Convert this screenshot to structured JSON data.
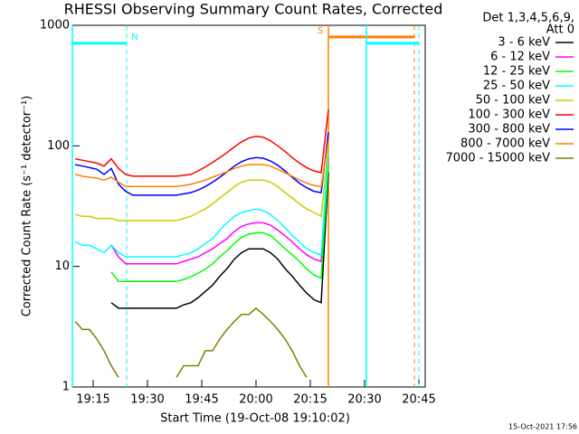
{
  "chart_data": {
    "type": "line",
    "title": "RHESSI Observing Summary Count Rates, Corrected",
    "xlabel": "Start Time (19-Oct-08 19:10:02)",
    "ylabel": "Corrected Count Rate (s⁻¹ detector⁻¹)",
    "legend_title": [
      "Det 1,3,4,5,6,9,",
      "Att 0"
    ],
    "legend": "right",
    "timestamp": "15-Oct-2021 17:56",
    "yscale": "log",
    "xlim": [
      -0.75,
      96.75
    ],
    "ylim": [
      1,
      1000
    ],
    "xticks": [
      {
        "value": 5,
        "label": "19:15"
      },
      {
        "value": 20,
        "label": "19:30"
      },
      {
        "value": 35,
        "label": "19:45"
      },
      {
        "value": 50,
        "label": "20:00"
      },
      {
        "value": 65,
        "label": "20:15"
      },
      {
        "value": 80,
        "label": "20:30"
      },
      {
        "value": 95,
        "label": "20:45"
      }
    ],
    "yticks": [
      1,
      10,
      100,
      1000
    ],
    "flags": [
      {
        "label": "N",
        "color": "#00ffff",
        "start": -0.75,
        "end": 14.25,
        "level": 710
      },
      {
        "label": "S",
        "color": "#ff8000",
        "start": 70,
        "end": 93.75,
        "level": 800
      },
      {
        "color": "#00ffff",
        "start": 80.5,
        "end": 95,
        "level": 710
      }
    ],
    "x": [
      0,
      2,
      4,
      6,
      8,
      10,
      12,
      14,
      16,
      18,
      20,
      22,
      24,
      26,
      28,
      30,
      32,
      34,
      36,
      38,
      40,
      42,
      44,
      46,
      48,
      50,
      52,
      54,
      56,
      58,
      60,
      62,
      64,
      66,
      68,
      70
    ],
    "series": [
      {
        "name": "3 - 6 keV",
        "color": "#000000",
        "values": [
          null,
          null,
          null,
          null,
          null,
          5,
          4.5,
          4.5,
          4.5,
          4.5,
          4.5,
          4.5,
          4.5,
          4.5,
          4.5,
          4.8,
          5,
          5.5,
          6.2,
          7,
          8.3,
          9.6,
          11.5,
          13,
          14,
          14,
          14,
          13,
          11.5,
          9.6,
          8.3,
          7,
          6,
          5.3,
          5,
          60
        ]
      },
      {
        "name": "6 - 12 keV",
        "color": "#ff00ff",
        "values": [
          null,
          null,
          null,
          null,
          null,
          15,
          12,
          10.5,
          10.5,
          10.5,
          10.5,
          10.5,
          10.5,
          10.5,
          10.5,
          11,
          11.5,
          12,
          13,
          14,
          15.5,
          17,
          19.5,
          21.5,
          22.5,
          23,
          23,
          22,
          20,
          18,
          16,
          14,
          12.5,
          11.5,
          11,
          80
        ]
      },
      {
        "name": "12 - 25 keV",
        "color": "#00ff00",
        "values": [
          null,
          null,
          null,
          null,
          null,
          9,
          7.5,
          7.5,
          7.5,
          7.5,
          7.5,
          7.5,
          7.5,
          7.5,
          7.5,
          7.8,
          8.2,
          8.8,
          9.5,
          10.5,
          12,
          13.5,
          15.5,
          17.5,
          18.5,
          19,
          19,
          18,
          16,
          14,
          12.5,
          11,
          9.5,
          8.5,
          8,
          70
        ]
      },
      {
        "name": "25 - 50 keV",
        "color": "#00ffff",
        "values": [
          16,
          15,
          15,
          14,
          13,
          15,
          13,
          12,
          12,
          12,
          12,
          12,
          12,
          12,
          12,
          12.5,
          13,
          14,
          15.5,
          17,
          20,
          23,
          26,
          28,
          29,
          30,
          29,
          27,
          24,
          21,
          18,
          16,
          14,
          13,
          12.5,
          90
        ]
      },
      {
        "name": "50 - 100 keV",
        "color": "#cccc00",
        "values": [
          27,
          26,
          26,
          25,
          25,
          25,
          24,
          24,
          24,
          24,
          24,
          24,
          24,
          24,
          24,
          25,
          26,
          28,
          30,
          33,
          37,
          41,
          46,
          50,
          52,
          52,
          52,
          50,
          46,
          41,
          37,
          33,
          30,
          28,
          26,
          100
        ]
      },
      {
        "name": "100 - 300 keV",
        "color": "#ff0000",
        "values": [
          78,
          76,
          74,
          72,
          68,
          78,
          65,
          58,
          56,
          56,
          56,
          56,
          56,
          56,
          56,
          57,
          58,
          62,
          67,
          73,
          80,
          88,
          98,
          108,
          116,
          120,
          118,
          110,
          100,
          90,
          80,
          72,
          66,
          62,
          60,
          200
        ]
      },
      {
        "name": "300 - 800 keV",
        "color": "#0000ff",
        "values": [
          70,
          68,
          66,
          64,
          58,
          65,
          48,
          42,
          39,
          39,
          39,
          39,
          39,
          39,
          39,
          40,
          41,
          43,
          46,
          50,
          55,
          61,
          68,
          74,
          78,
          80,
          79,
          75,
          69,
          62,
          55,
          49,
          45,
          42,
          41,
          130
        ]
      },
      {
        "name": "800 - 7000 keV",
        "color": "#ff8000",
        "values": [
          58,
          56,
          55,
          54,
          52,
          55,
          50,
          46,
          46,
          46,
          46,
          46,
          46,
          46,
          46,
          47,
          48,
          50,
          52,
          55,
          58,
          61,
          65,
          68,
          70,
          70,
          70,
          68,
          64,
          60,
          56,
          52,
          49,
          47,
          46,
          110
        ]
      },
      {
        "name": "7000 - 15000 keV",
        "color": "#808000",
        "values": [
          3.5,
          3,
          3,
          2.5,
          2,
          1.5,
          1.2,
          null,
          null,
          null,
          null,
          null,
          null,
          null,
          1.2,
          1.5,
          1.5,
          1.5,
          2,
          2,
          2.5,
          3,
          3.5,
          4,
          4,
          4.5,
          4,
          3.5,
          3,
          2.5,
          2,
          1.5,
          1.2,
          null,
          null,
          null
        ]
      }
    ]
  }
}
